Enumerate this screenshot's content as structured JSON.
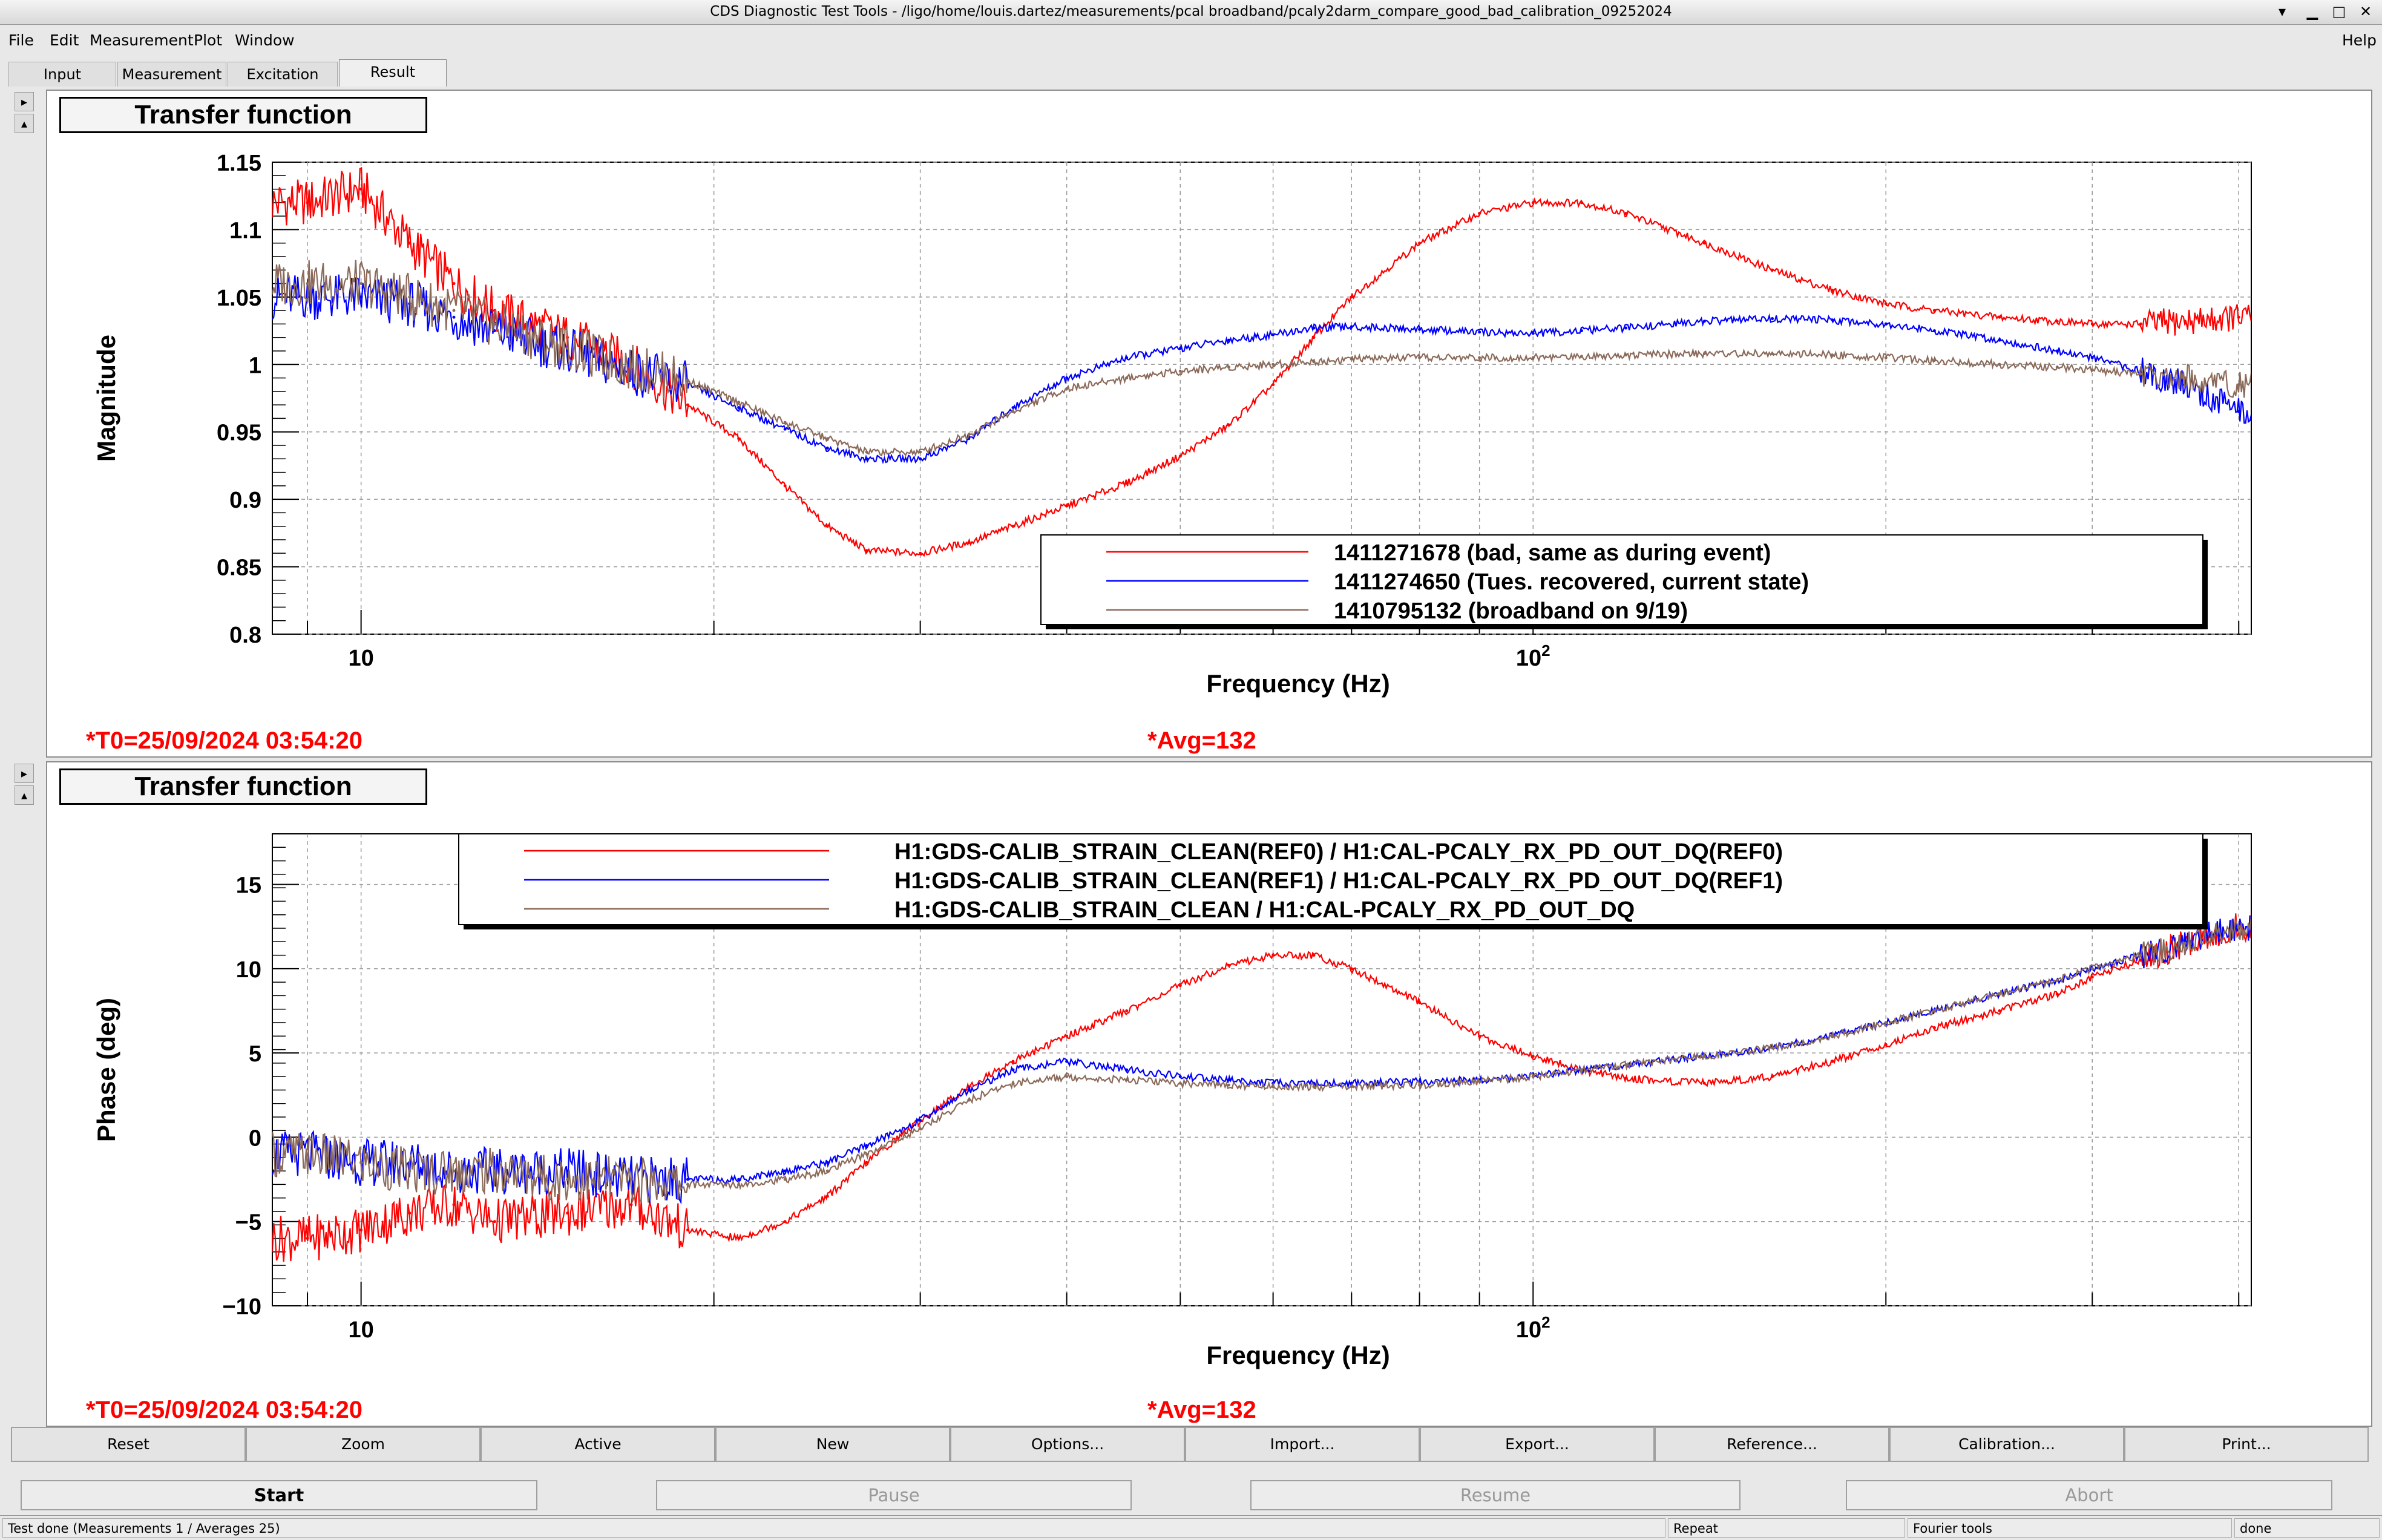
{
  "window": {
    "title": "CDS Diagnostic Test Tools - /ligo/home/louis.dartez/measurements/pcal broadband/pcaly2darm_compare_good_bad_calibration_09252024",
    "controls": [
      "minimize-icon",
      "restore-icon",
      "maximize-icon",
      "close-icon"
    ]
  },
  "menu": {
    "items": [
      "File",
      "Edit",
      "Measurement",
      "Plot",
      "Window"
    ],
    "help": "Help"
  },
  "tabs": [
    {
      "label": "Input"
    },
    {
      "label": "Measurement"
    },
    {
      "label": "Excitation"
    },
    {
      "label": "Result",
      "active": true
    }
  ],
  "panel1": {
    "title": "Transfer function",
    "t0": "*T0=25/09/2024 03:54:20",
    "avg": "*Avg=132"
  },
  "panel2": {
    "title": "Transfer function",
    "t0": "*T0=25/09/2024 03:54:20",
    "avg": "*Avg=132"
  },
  "chart_data": [
    {
      "type": "line",
      "ylabel": "Magnitude",
      "xlabel": "Frequency (Hz)",
      "xscale": "log",
      "xlim": [
        8.4,
        410
      ],
      "ylim": [
        0.8,
        1.15
      ],
      "yticks": [
        "0.8",
        "0.85",
        "0.9",
        "0.95",
        "1",
        "1.05",
        "1.1",
        "1.15"
      ],
      "xtick_labels": [
        {
          "x": 10,
          "label": "10"
        },
        {
          "x": 100,
          "label": "10",
          "sup": "2"
        }
      ],
      "grid": true,
      "legend_position": "lower-right",
      "series": [
        {
          "name": "1411271678 (bad, same as during event)",
          "color": "#ff0000",
          "x": [
            9,
            10,
            11,
            12,
            13,
            15,
            17,
            19,
            21,
            23,
            25,
            27,
            30,
            33,
            36,
            40,
            45,
            50,
            55,
            60,
            65,
            70,
            80,
            90,
            100,
            110,
            120,
            140,
            160,
            180,
            200,
            220,
            250,
            280,
            300,
            330,
            360,
            400
          ],
          "values": [
            1.12,
            1.13,
            1.09,
            1.06,
            1.04,
            1.02,
            1.0,
            0.97,
            0.945,
            0.91,
            0.88,
            0.862,
            0.86,
            0.868,
            0.88,
            0.895,
            0.912,
            0.932,
            0.955,
            0.985,
            1.02,
            1.05,
            1.09,
            1.112,
            1.12,
            1.12,
            1.112,
            1.09,
            1.07,
            1.055,
            1.045,
            1.04,
            1.035,
            1.032,
            1.03,
            1.03,
            1.032,
            1.035
          ]
        },
        {
          "name": "1411274650 (Tues. recovered, current state)",
          "color": "#0000ff",
          "x": [
            9,
            10,
            11,
            12,
            13,
            15,
            17,
            19,
            21,
            23,
            25,
            27,
            30,
            33,
            36,
            40,
            45,
            50,
            55,
            60,
            65,
            70,
            80,
            90,
            100,
            110,
            120,
            140,
            160,
            180,
            200,
            220,
            250,
            280,
            300,
            330,
            360,
            400
          ],
          "values": [
            1.05,
            1.05,
            1.045,
            1.035,
            1.025,
            1.01,
            0.995,
            0.985,
            0.968,
            0.952,
            0.938,
            0.93,
            0.93,
            0.945,
            0.968,
            0.99,
            1.005,
            1.012,
            1.018,
            1.022,
            1.027,
            1.028,
            1.026,
            1.024,
            1.023,
            1.025,
            1.027,
            1.032,
            1.034,
            1.033,
            1.03,
            1.025,
            1.018,
            1.01,
            1.005,
            0.995,
            0.985,
            0.965
          ]
        },
        {
          "name": "1410795132 (broadband on 9/19)",
          "color": "#8b6a5a",
          "x": [
            9,
            10,
            11,
            12,
            13,
            15,
            17,
            19,
            21,
            23,
            25,
            27,
            30,
            33,
            36,
            40,
            45,
            50,
            55,
            60,
            65,
            70,
            80,
            90,
            100,
            110,
            120,
            140,
            160,
            180,
            200,
            220,
            250,
            280,
            300,
            330,
            360,
            400
          ],
          "values": [
            1.06,
            1.06,
            1.05,
            1.04,
            1.03,
            1.012,
            0.998,
            0.988,
            0.972,
            0.957,
            0.945,
            0.935,
            0.935,
            0.948,
            0.965,
            0.982,
            0.99,
            0.995,
            0.998,
            1.0,
            1.002,
            1.004,
            1.005,
            1.005,
            1.005,
            1.006,
            1.007,
            1.008,
            1.008,
            1.007,
            1.005,
            1.003,
            1.0,
            0.998,
            0.996,
            0.993,
            0.99,
            0.985
          ]
        }
      ]
    },
    {
      "type": "line",
      "ylabel": "Phase (deg)",
      "xlabel": "Frequency (Hz)",
      "xscale": "log",
      "xlim": [
        8.4,
        410
      ],
      "ylim": [
        -10,
        18
      ],
      "yticks": [
        "15",
        "10",
        "5",
        "0",
        "−5",
        "−10"
      ],
      "xtick_labels": [
        {
          "x": 10,
          "label": "10"
        },
        {
          "x": 100,
          "label": "10",
          "sup": "2"
        }
      ],
      "grid": true,
      "legend_position": "top",
      "series": [
        {
          "name": "H1:GDS-CALIB_STRAIN_CLEAN(REF0) / H1:CAL-PCALY_RX_PD_OUT_DQ(REF0)",
          "color": "#ff0000",
          "x": [
            9,
            10,
            11,
            12,
            13,
            15,
            17,
            19,
            21,
            23,
            25,
            27,
            30,
            33,
            36,
            40,
            45,
            50,
            55,
            60,
            65,
            70,
            80,
            90,
            100,
            110,
            120,
            140,
            160,
            180,
            200,
            220,
            250,
            280,
            300,
            330,
            360,
            400
          ],
          "values": [
            -6,
            -5.5,
            -4.5,
            -4,
            -5,
            -4.5,
            -4,
            -5.5,
            -6,
            -5,
            -3.5,
            -1.5,
            1,
            3,
            4.5,
            6,
            7.5,
            9,
            10.2,
            10.8,
            10.8,
            10,
            8,
            6,
            4.8,
            4,
            3.5,
            3.2,
            3.6,
            4.5,
            5.5,
            6.5,
            7.5,
            8.5,
            9.5,
            10.5,
            11.5,
            12.5
          ]
        },
        {
          "name": "H1:GDS-CALIB_STRAIN_CLEAN(REF1) / H1:CAL-PCALY_RX_PD_OUT_DQ(REF1)",
          "color": "#0000ff",
          "x": [
            9,
            10,
            11,
            12,
            13,
            15,
            17,
            19,
            21,
            23,
            25,
            27,
            30,
            33,
            36,
            40,
            45,
            50,
            55,
            60,
            65,
            70,
            80,
            90,
            100,
            110,
            120,
            140,
            160,
            180,
            200,
            220,
            250,
            280,
            300,
            330,
            360,
            400
          ],
          "values": [
            -1,
            -1.5,
            -1.5,
            -2,
            -2,
            -2,
            -2.5,
            -2.5,
            -2.5,
            -2,
            -1.5,
            -0.5,
            1,
            2.8,
            4,
            4.5,
            4,
            3.6,
            3.4,
            3.2,
            3.2,
            3.2,
            3.3,
            3.4,
            3.6,
            4,
            4.3,
            4.8,
            5.3,
            6,
            6.8,
            7.5,
            8.5,
            9.3,
            10,
            10.8,
            11.5,
            12.5
          ]
        },
        {
          "name": "H1:GDS-CALIB_STRAIN_CLEAN / H1:CAL-PCALY_RX_PD_OUT_DQ",
          "color": "#8b6a5a",
          "x": [
            9,
            10,
            11,
            12,
            13,
            15,
            17,
            19,
            21,
            23,
            25,
            27,
            30,
            33,
            36,
            40,
            45,
            50,
            55,
            60,
            65,
            70,
            80,
            90,
            100,
            110,
            120,
            140,
            160,
            180,
            200,
            220,
            250,
            280,
            300,
            330,
            360,
            400
          ],
          "values": [
            -1,
            -1.5,
            -2,
            -2,
            -2,
            -2.5,
            -2.5,
            -2.8,
            -2.8,
            -2.5,
            -2,
            -1,
            0.5,
            2.2,
            3.2,
            3.6,
            3.4,
            3.2,
            3.1,
            3.0,
            3.0,
            3.0,
            3.1,
            3.3,
            3.6,
            4,
            4.3,
            4.8,
            5.3,
            6,
            6.8,
            7.5,
            8.5,
            9.3,
            10,
            10.8,
            11.5,
            12.5
          ]
        }
      ]
    }
  ],
  "buttons": [
    "Reset",
    "Zoom",
    "Active",
    "New",
    "Options...",
    "Import...",
    "Export...",
    "Reference...",
    "Calibration...",
    "Print..."
  ],
  "controls": [
    "Start",
    "Pause",
    "Resume",
    "Abort"
  ],
  "status": {
    "message": "Test done (Measurements 1 / Averages 25)",
    "mode": "Repeat",
    "tools": "Fourier tools",
    "state": "done"
  }
}
